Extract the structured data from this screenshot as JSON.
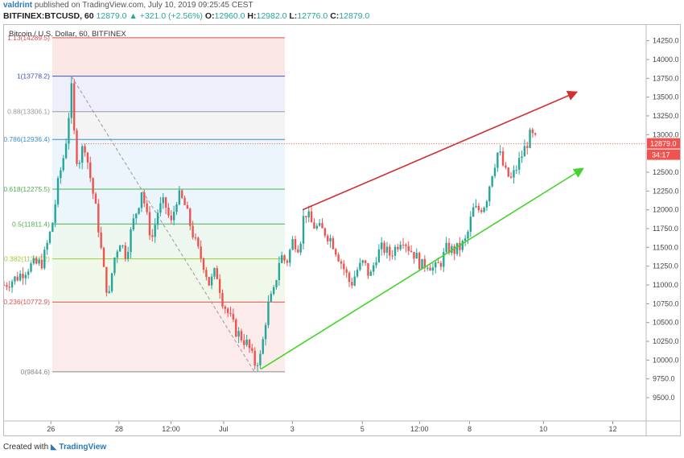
{
  "header": {
    "user": "valdrint",
    "published": "published on TradingView.com, July 10, 2019 09:25:45 CEST",
    "symbol_line": "BITFINEX:BTCUSD, 60",
    "change": "12879.0 ▲ +321.0 (+2.56%)",
    "open_label": "O:",
    "open": "12960.0",
    "high_label": "H:",
    "high": "12982.0",
    "low_label": "L:",
    "low": "12776.0",
    "close_label": "C:",
    "close": "12879.0"
  },
  "footer": {
    "created_with": "Created with",
    "brand": "TradingView"
  },
  "colors": {
    "up": "#26a69a",
    "down": "#ef5350",
    "price_label": "#ef5350",
    "upper_trend": "#d32f2f",
    "lower_trend": "#43d52b"
  },
  "chart_data": {
    "type": "candlestick",
    "title": "Bitcoin / U.S. Dollar, 60, BITFINEX",
    "x_ticks": [
      "26",
      "28",
      "12:00",
      "Jul",
      "3",
      "5",
      "12:00",
      "8",
      "10",
      "12"
    ],
    "y_ticks": [
      "14250.0",
      "14000.0",
      "13750.0",
      "13500.0",
      "13250.0",
      "13000.0",
      "12750.0",
      "12500.0",
      "12250.0",
      "12000.0",
      "11750.0",
      "11500.0",
      "11250.0",
      "11000.0",
      "10750.0",
      "10500.0",
      "10250.0",
      "10000.0",
      "9750.0",
      "9500.0"
    ],
    "ylim": [
      9190,
      14460
    ],
    "current_price": "12879.0",
    "countdown": "34:17",
    "fib_levels": [
      {
        "label": "1.13(14289.5)",
        "value": 14289.5
      },
      {
        "label": "1(13778.2)",
        "value": 13778.2
      },
      {
        "label": "0.88(13306.1)",
        "value": 13306.1
      },
      {
        "label": "0.786(12936.4)",
        "value": 12936.4
      },
      {
        "label": "0.618(12275.5)",
        "value": 12275.5
      },
      {
        "label": "0.5(11811.4)",
        "value": 11811.4
      },
      {
        "label": "0.382(11347.2)",
        "value": 11347.2
      },
      {
        "label": "0.236(10772.9)",
        "value": 10772.9
      },
      {
        "label": "0(9844.6)",
        "value": 9844.6
      }
    ],
    "trendlines": [
      {
        "name": "upper",
        "from": [
          0.465,
          12000
        ],
        "to": [
          0.89,
          13560
        ]
      },
      {
        "name": "lower",
        "from": [
          0.4,
          9880
        ],
        "to": [
          0.9,
          12540
        ]
      }
    ],
    "price_path": [
      [
        0,
        11000
      ],
      [
        0.02,
        11100
      ],
      [
        0.04,
        11250
      ],
      [
        0.06,
        11300
      ],
      [
        0.075,
        11800
      ],
      [
        0.085,
        12400
      ],
      [
        0.095,
        12800
      ],
      [
        0.105,
        13600
      ],
      [
        0.11,
        12900
      ],
      [
        0.115,
        12600
      ],
      [
        0.125,
        12900
      ],
      [
        0.135,
        12400
      ],
      [
        0.145,
        11900
      ],
      [
        0.155,
        11200
      ],
      [
        0.163,
        10800
      ],
      [
        0.17,
        11300
      ],
      [
        0.18,
        11600
      ],
      [
        0.19,
        11400
      ],
      [
        0.2,
        11800
      ],
      [
        0.21,
        12100
      ],
      [
        0.215,
        12300
      ],
      [
        0.22,
        12000
      ],
      [
        0.23,
        11600
      ],
      [
        0.24,
        12000
      ],
      [
        0.25,
        12100
      ],
      [
        0.26,
        11800
      ],
      [
        0.27,
        12200
      ],
      [
        0.28,
        12100
      ],
      [
        0.29,
        11800
      ],
      [
        0.3,
        11500
      ],
      [
        0.31,
        11300
      ],
      [
        0.32,
        11000
      ],
      [
        0.33,
        11200
      ],
      [
        0.34,
        10800
      ],
      [
        0.35,
        10600
      ],
      [
        0.36,
        10400
      ],
      [
        0.37,
        10300
      ],
      [
        0.38,
        10200
      ],
      [
        0.39,
        9950
      ],
      [
        0.4,
        10050
      ],
      [
        0.41,
        10700
      ],
      [
        0.42,
        10900
      ],
      [
        0.43,
        11400
      ],
      [
        0.44,
        11300
      ],
      [
        0.45,
        11600
      ],
      [
        0.46,
        11500
      ],
      [
        0.468,
        12000
      ],
      [
        0.48,
        11800
      ],
      [
        0.5,
        11700
      ],
      [
        0.51,
        11600
      ],
      [
        0.52,
        11400
      ],
      [
        0.53,
        11200
      ],
      [
        0.54,
        11000
      ],
      [
        0.55,
        11200
      ],
      [
        0.56,
        11300
      ],
      [
        0.57,
        11100
      ],
      [
        0.58,
        11400
      ],
      [
        0.59,
        11500
      ],
      [
        0.6,
        11400
      ],
      [
        0.61,
        11500
      ],
      [
        0.62,
        11650
      ],
      [
        0.63,
        11500
      ],
      [
        0.64,
        11400
      ],
      [
        0.65,
        11250
      ],
      [
        0.66,
        11300
      ],
      [
        0.67,
        11200
      ],
      [
        0.68,
        11300
      ],
      [
        0.69,
        11500
      ],
      [
        0.7,
        11450
      ],
      [
        0.71,
        11500
      ],
      [
        0.72,
        11600
      ],
      [
        0.73,
        12000
      ],
      [
        0.74,
        12000
      ],
      [
        0.75,
        12100
      ],
      [
        0.76,
        12500
      ],
      [
        0.77,
        12800
      ],
      [
        0.78,
        12500
      ],
      [
        0.79,
        12400
      ],
      [
        0.8,
        12600
      ],
      [
        0.81,
        12800
      ],
      [
        0.82,
        13000
      ],
      [
        0.83,
        12900
      ]
    ]
  }
}
